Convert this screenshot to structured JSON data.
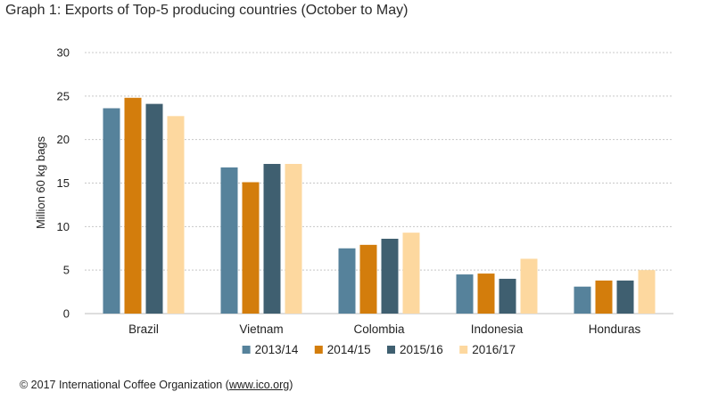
{
  "chart_data": {
    "type": "bar",
    "title": "Graph 1: Exports of Top-5 producing countries (October to May)",
    "ylabel": "Million 60 kg bags",
    "xlabel": "",
    "ylim": [
      0,
      30
    ],
    "yticks": [
      0,
      5,
      10,
      15,
      20,
      25,
      30
    ],
    "grid": true,
    "legend_position": "bottom",
    "categories": [
      "Brazil",
      "Vietnam",
      "Colombia",
      "Indonesia",
      "Honduras"
    ],
    "series": [
      {
        "name": "2013/14",
        "color": "#56829b",
        "values": [
          23.6,
          16.8,
          7.5,
          4.5,
          3.1
        ]
      },
      {
        "name": "2014/15",
        "color": "#d37d0c",
        "values": [
          24.8,
          15.1,
          7.9,
          4.6,
          3.8
        ]
      },
      {
        "name": "2015/16",
        "color": "#3f5f70",
        "values": [
          24.1,
          17.2,
          8.6,
          4.0,
          3.8
        ]
      },
      {
        "name": "2016/17",
        "color": "#fdd89f",
        "values": [
          22.7,
          17.2,
          9.3,
          6.3,
          5.0
        ]
      }
    ]
  },
  "footer": {
    "prefix": "© 2017 International Coffee Organization (",
    "link": "www.ico.org",
    "suffix": ")"
  }
}
